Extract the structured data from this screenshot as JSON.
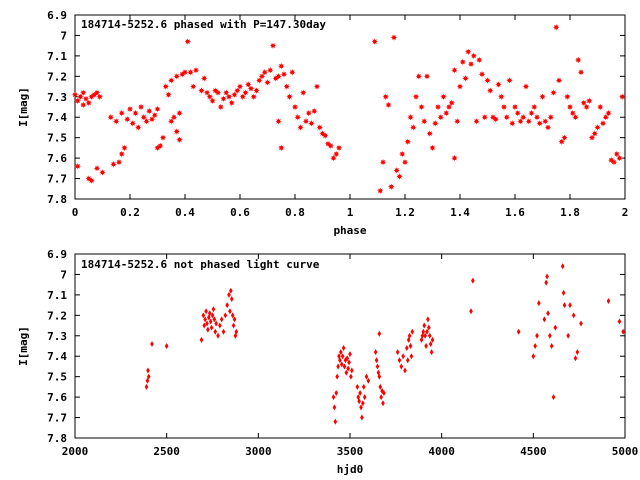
{
  "chart_data": [
    {
      "type": "scatter",
      "title": "184714-5252.6 phased with P=147.30day",
      "xlabel": "phase",
      "ylabel": "I[mag]",
      "xlim": [
        0,
        2
      ],
      "ylim": [
        6.9,
        7.8
      ],
      "y_inverted": true,
      "grid": false,
      "xticks": [
        0,
        0.2,
        0.4,
        0.6,
        0.8,
        1,
        1.2,
        1.4,
        1.6,
        1.8,
        2
      ],
      "xtick_labels": [
        "0",
        "0.2",
        "0.4",
        "0.6",
        "0.8",
        "1",
        "1.2",
        "1.4",
        "1.6",
        "1.8",
        "2"
      ],
      "yticks": [
        6.9,
        7,
        7.1,
        7.2,
        7.3,
        7.4,
        7.5,
        7.6,
        7.7,
        7.8
      ],
      "ytick_labels": [
        "6.9",
        "7",
        "7.1",
        "7.2",
        "7.3",
        "7.4",
        "7.5",
        "7.6",
        "7.7",
        "7.8"
      ],
      "marker": "star",
      "color": "#ff0000",
      "points": [
        [
          0.0,
          7.29
        ],
        [
          0.01,
          7.32
        ],
        [
          0.01,
          7.64
        ],
        [
          0.02,
          7.3
        ],
        [
          0.03,
          7.34
        ],
        [
          0.03,
          7.28
        ],
        [
          0.04,
          7.31
        ],
        [
          0.05,
          7.33
        ],
        [
          0.05,
          7.7
        ],
        [
          0.06,
          7.3
        ],
        [
          0.06,
          7.71
        ],
        [
          0.07,
          7.29
        ],
        [
          0.08,
          7.65
        ],
        [
          0.08,
          7.28
        ],
        [
          0.09,
          7.3
        ],
        [
          0.1,
          7.67
        ],
        [
          0.13,
          7.4
        ],
        [
          0.14,
          7.63
        ],
        [
          0.15,
          7.42
        ],
        [
          0.16,
          7.62
        ],
        [
          0.17,
          7.38
        ],
        [
          0.17,
          7.58
        ],
        [
          0.18,
          7.55
        ],
        [
          0.19,
          7.41
        ],
        [
          0.2,
          7.36
        ],
        [
          0.21,
          7.43
        ],
        [
          0.22,
          7.38
        ],
        [
          0.23,
          7.45
        ],
        [
          0.24,
          7.35
        ],
        [
          0.25,
          7.4
        ],
        [
          0.26,
          7.42
        ],
        [
          0.27,
          7.37
        ],
        [
          0.28,
          7.41
        ],
        [
          0.29,
          7.39
        ],
        [
          0.3,
          7.36
        ],
        [
          0.3,
          7.55
        ],
        [
          0.31,
          7.54
        ],
        [
          0.32,
          7.5
        ],
        [
          0.33,
          7.25
        ],
        [
          0.34,
          7.29
        ],
        [
          0.35,
          7.22
        ],
        [
          0.35,
          7.42
        ],
        [
          0.36,
          7.4
        ],
        [
          0.37,
          7.47
        ],
        [
          0.37,
          7.2
        ],
        [
          0.38,
          7.51
        ],
        [
          0.38,
          7.38
        ],
        [
          0.39,
          7.19
        ],
        [
          0.4,
          7.18
        ],
        [
          0.41,
          7.03
        ],
        [
          0.42,
          7.18
        ],
        [
          0.43,
          7.25
        ],
        [
          0.44,
          7.17
        ],
        [
          0.46,
          7.27
        ],
        [
          0.47,
          7.21
        ],
        [
          0.48,
          7.28
        ],
        [
          0.49,
          7.3
        ],
        [
          0.5,
          7.32
        ],
        [
          0.51,
          7.27
        ],
        [
          0.52,
          7.28
        ],
        [
          0.53,
          7.35
        ],
        [
          0.54,
          7.31
        ],
        [
          0.55,
          7.28
        ],
        [
          0.56,
          7.3
        ],
        [
          0.57,
          7.33
        ],
        [
          0.58,
          7.29
        ],
        [
          0.59,
          7.27
        ],
        [
          0.6,
          7.25
        ],
        [
          0.61,
          7.3
        ],
        [
          0.62,
          7.28
        ],
        [
          0.63,
          7.24
        ],
        [
          0.64,
          7.26
        ],
        [
          0.65,
          7.3
        ],
        [
          0.66,
          7.27
        ],
        [
          0.67,
          7.22
        ],
        [
          0.68,
          7.2
        ],
        [
          0.69,
          7.18
        ],
        [
          0.7,
          7.23
        ],
        [
          0.71,
          7.17
        ],
        [
          0.72,
          7.05
        ],
        [
          0.73,
          7.21
        ],
        [
          0.74,
          7.2
        ],
        [
          0.74,
          7.42
        ],
        [
          0.75,
          7.15
        ],
        [
          0.75,
          7.55
        ],
        [
          0.76,
          7.19
        ],
        [
          0.77,
          7.25
        ],
        [
          0.78,
          7.3
        ],
        [
          0.79,
          7.18
        ],
        [
          0.8,
          7.35
        ],
        [
          0.81,
          7.4
        ],
        [
          0.82,
          7.45
        ],
        [
          0.83,
          7.28
        ],
        [
          0.84,
          7.42
        ],
        [
          0.85,
          7.38
        ],
        [
          0.86,
          7.43
        ],
        [
          0.87,
          7.37
        ],
        [
          0.88,
          7.25
        ],
        [
          0.89,
          7.45
        ],
        [
          0.9,
          7.48
        ],
        [
          0.91,
          7.49
        ],
        [
          0.92,
          7.53
        ],
        [
          0.93,
          7.54
        ],
        [
          0.94,
          7.6
        ],
        [
          0.95,
          7.58
        ],
        [
          0.96,
          7.55
        ],
        [
          1.09,
          7.03
        ],
        [
          1.11,
          7.76
        ],
        [
          1.12,
          7.62
        ],
        [
          1.13,
          7.3
        ],
        [
          1.14,
          7.34
        ],
        [
          1.15,
          7.74
        ],
        [
          1.16,
          7.01
        ],
        [
          1.17,
          7.66
        ],
        [
          1.18,
          7.69
        ],
        [
          1.19,
          7.58
        ],
        [
          1.2,
          7.62
        ],
        [
          1.21,
          7.52
        ],
        [
          1.22,
          7.4
        ],
        [
          1.23,
          7.45
        ],
        [
          1.24,
          7.3
        ],
        [
          1.25,
          7.2
        ],
        [
          1.26,
          7.35
        ],
        [
          1.27,
          7.42
        ],
        [
          1.28,
          7.2
        ],
        [
          1.29,
          7.48
        ],
        [
          1.3,
          7.55
        ],
        [
          1.31,
          7.43
        ],
        [
          1.32,
          7.35
        ],
        [
          1.33,
          7.4
        ],
        [
          1.34,
          7.3
        ],
        [
          1.35,
          7.38
        ],
        [
          1.36,
          7.35
        ],
        [
          1.37,
          7.33
        ],
        [
          1.38,
          7.17
        ],
        [
          1.38,
          7.6
        ],
        [
          1.39,
          7.42
        ],
        [
          1.4,
          7.25
        ],
        [
          1.41,
          7.13
        ],
        [
          1.42,
          7.21
        ],
        [
          1.43,
          7.08
        ],
        [
          1.44,
          7.14
        ],
        [
          1.45,
          7.1
        ],
        [
          1.46,
          7.42
        ],
        [
          1.47,
          7.12
        ],
        [
          1.48,
          7.19
        ],
        [
          1.49,
          7.4
        ],
        [
          1.5,
          7.22
        ],
        [
          1.51,
          7.27
        ],
        [
          1.52,
          7.4
        ],
        [
          1.53,
          7.41
        ],
        [
          1.54,
          7.24
        ],
        [
          1.55,
          7.3
        ],
        [
          1.56,
          7.35
        ],
        [
          1.57,
          7.4
        ],
        [
          1.58,
          7.22
        ],
        [
          1.59,
          7.43
        ],
        [
          1.6,
          7.35
        ],
        [
          1.61,
          7.38
        ],
        [
          1.62,
          7.42
        ],
        [
          1.63,
          7.4
        ],
        [
          1.64,
          7.25
        ],
        [
          1.65,
          7.42
        ],
        [
          1.66,
          7.38
        ],
        [
          1.67,
          7.35
        ],
        [
          1.68,
          7.4
        ],
        [
          1.69,
          7.43
        ],
        [
          1.7,
          7.3
        ],
        [
          1.71,
          7.42
        ],
        [
          1.72,
          7.45
        ],
        [
          1.73,
          7.4
        ],
        [
          1.74,
          7.28
        ],
        [
          1.75,
          6.96
        ],
        [
          1.76,
          7.22
        ],
        [
          1.77,
          7.52
        ],
        [
          1.78,
          7.5
        ],
        [
          1.79,
          7.3
        ],
        [
          1.8,
          7.35
        ],
        [
          1.81,
          7.38
        ],
        [
          1.82,
          7.4
        ],
        [
          1.83,
          7.12
        ],
        [
          1.84,
          7.18
        ],
        [
          1.85,
          7.33
        ],
        [
          1.86,
          7.35
        ],
        [
          1.87,
          7.32
        ],
        [
          1.88,
          7.5
        ],
        [
          1.89,
          7.48
        ],
        [
          1.9,
          7.45
        ],
        [
          1.91,
          7.35
        ],
        [
          1.92,
          7.43
        ],
        [
          1.93,
          7.4
        ],
        [
          1.94,
          7.38
        ],
        [
          1.95,
          7.61
        ],
        [
          1.96,
          7.62
        ],
        [
          1.97,
          7.58
        ],
        [
          1.98,
          7.6
        ],
        [
          1.99,
          7.3
        ]
      ]
    },
    {
      "type": "scatter",
      "title": "184714-5252.6 not phased light curve",
      "xlabel": "hjd0",
      "ylabel": "I[mag]",
      "xlim": [
        2000,
        5000
      ],
      "ylim": [
        6.9,
        7.8
      ],
      "y_inverted": true,
      "grid": false,
      "xticks": [
        2000,
        2500,
        3000,
        3500,
        4000,
        4500,
        5000
      ],
      "xtick_labels": [
        "2000",
        "2500",
        "3000",
        "3500",
        "4000",
        "4500",
        "5000"
      ],
      "yticks": [
        6.9,
        7,
        7.1,
        7.2,
        7.3,
        7.4,
        7.5,
        7.6,
        7.7,
        7.8
      ],
      "ytick_labels": [
        "6.9",
        "7",
        "7.1",
        "7.2",
        "7.3",
        "7.4",
        "7.5",
        "7.6",
        "7.7",
        "7.8"
      ],
      "marker": "diamond",
      "color": "#ff0000",
      "points": [
        [
          2390,
          7.55
        ],
        [
          2395,
          7.52
        ],
        [
          2398,
          7.47
        ],
        [
          2402,
          7.5
        ],
        [
          2420,
          7.34
        ],
        [
          2500,
          7.35
        ],
        [
          2690,
          7.32
        ],
        [
          2700,
          7.2
        ],
        [
          2705,
          7.25
        ],
        [
          2710,
          7.22
        ],
        [
          2715,
          7.18
        ],
        [
          2720,
          7.24
        ],
        [
          2725,
          7.27
        ],
        [
          2730,
          7.21
        ],
        [
          2735,
          7.19
        ],
        [
          2740,
          7.23
        ],
        [
          2745,
          7.26
        ],
        [
          2750,
          7.2
        ],
        [
          2755,
          7.17
        ],
        [
          2760,
          7.22
        ],
        [
          2765,
          7.28
        ],
        [
          2770,
          7.24
        ],
        [
          2780,
          7.3
        ],
        [
          2790,
          7.25
        ],
        [
          2800,
          7.22
        ],
        [
          2810,
          7.28
        ],
        [
          2820,
          7.2
        ],
        [
          2830,
          7.15
        ],
        [
          2840,
          7.1
        ],
        [
          2845,
          7.18
        ],
        [
          2850,
          7.08
        ],
        [
          2855,
          7.12
        ],
        [
          2860,
          7.2
        ],
        [
          2865,
          7.25
        ],
        [
          2870,
          7.22
        ],
        [
          2875,
          7.3
        ],
        [
          2880,
          7.28
        ],
        [
          3410,
          7.6
        ],
        [
          3415,
          7.65
        ],
        [
          3420,
          7.72
        ],
        [
          3425,
          7.58
        ],
        [
          3430,
          7.5
        ],
        [
          3435,
          7.45
        ],
        [
          3440,
          7.4
        ],
        [
          3445,
          7.42
        ],
        [
          3450,
          7.38
        ],
        [
          3455,
          7.44
        ],
        [
          3460,
          7.4
        ],
        [
          3465,
          7.36
        ],
        [
          3470,
          7.45
        ],
        [
          3475,
          7.42
        ],
        [
          3480,
          7.48
        ],
        [
          3485,
          7.41
        ],
        [
          3490,
          7.46
        ],
        [
          3495,
          7.43
        ],
        [
          3500,
          7.39
        ],
        [
          3505,
          7.5
        ],
        [
          3510,
          7.47
        ],
        [
          3540,
          7.55
        ],
        [
          3545,
          7.6
        ],
        [
          3550,
          7.62
        ],
        [
          3555,
          7.58
        ],
        [
          3560,
          7.65
        ],
        [
          3565,
          7.7
        ],
        [
          3570,
          7.63
        ],
        [
          3575,
          7.55
        ],
        [
          3580,
          7.6
        ],
        [
          3590,
          7.5
        ],
        [
          3600,
          7.52
        ],
        [
          3640,
          7.38
        ],
        [
          3645,
          7.42
        ],
        [
          3650,
          7.45
        ],
        [
          3655,
          7.48
        ],
        [
          3660,
          7.5
        ],
        [
          3665,
          7.55
        ],
        [
          3670,
          7.6
        ],
        [
          3675,
          7.57
        ],
        [
          3680,
          7.63
        ],
        [
          3685,
          7.58
        ],
        [
          3660,
          7.29
        ],
        [
          3760,
          7.38
        ],
        [
          3770,
          7.42
        ],
        [
          3780,
          7.45
        ],
        [
          3790,
          7.4
        ],
        [
          3800,
          7.47
        ],
        [
          3810,
          7.36
        ],
        [
          3815,
          7.42
        ],
        [
          3820,
          7.32
        ],
        [
          3825,
          7.3
        ],
        [
          3830,
          7.35
        ],
        [
          3835,
          7.4
        ],
        [
          3840,
          7.28
        ],
        [
          3890,
          7.32
        ],
        [
          3895,
          7.3
        ],
        [
          3900,
          7.28
        ],
        [
          3905,
          7.25
        ],
        [
          3910,
          7.3
        ],
        [
          3915,
          7.35
        ],
        [
          3920,
          7.28
        ],
        [
          3925,
          7.22
        ],
        [
          3930,
          7.26
        ],
        [
          3935,
          7.3
        ],
        [
          3940,
          7.34
        ],
        [
          3945,
          7.38
        ],
        [
          3950,
          7.32
        ],
        [
          4160,
          7.18
        ],
        [
          4170,
          7.03
        ],
        [
          4420,
          7.28
        ],
        [
          4500,
          7.4
        ],
        [
          4510,
          7.35
        ],
        [
          4520,
          7.3
        ],
        [
          4530,
          7.14
        ],
        [
          4560,
          7.22
        ],
        [
          4570,
          7.04
        ],
        [
          4575,
          7.01
        ],
        [
          4580,
          7.19
        ],
        [
          4590,
          7.3
        ],
        [
          4600,
          7.35
        ],
        [
          4610,
          7.6
        ],
        [
          4620,
          7.26
        ],
        [
          4660,
          6.96
        ],
        [
          4665,
          7.09
        ],
        [
          4670,
          7.15
        ],
        [
          4690,
          7.3
        ],
        [
          4700,
          7.15
        ],
        [
          4720,
          7.2
        ],
        [
          4730,
          7.41
        ],
        [
          4740,
          7.38
        ],
        [
          4760,
          7.24
        ],
        [
          4910,
          7.13
        ],
        [
          4970,
          7.23
        ],
        [
          4990,
          7.28
        ]
      ]
    }
  ]
}
